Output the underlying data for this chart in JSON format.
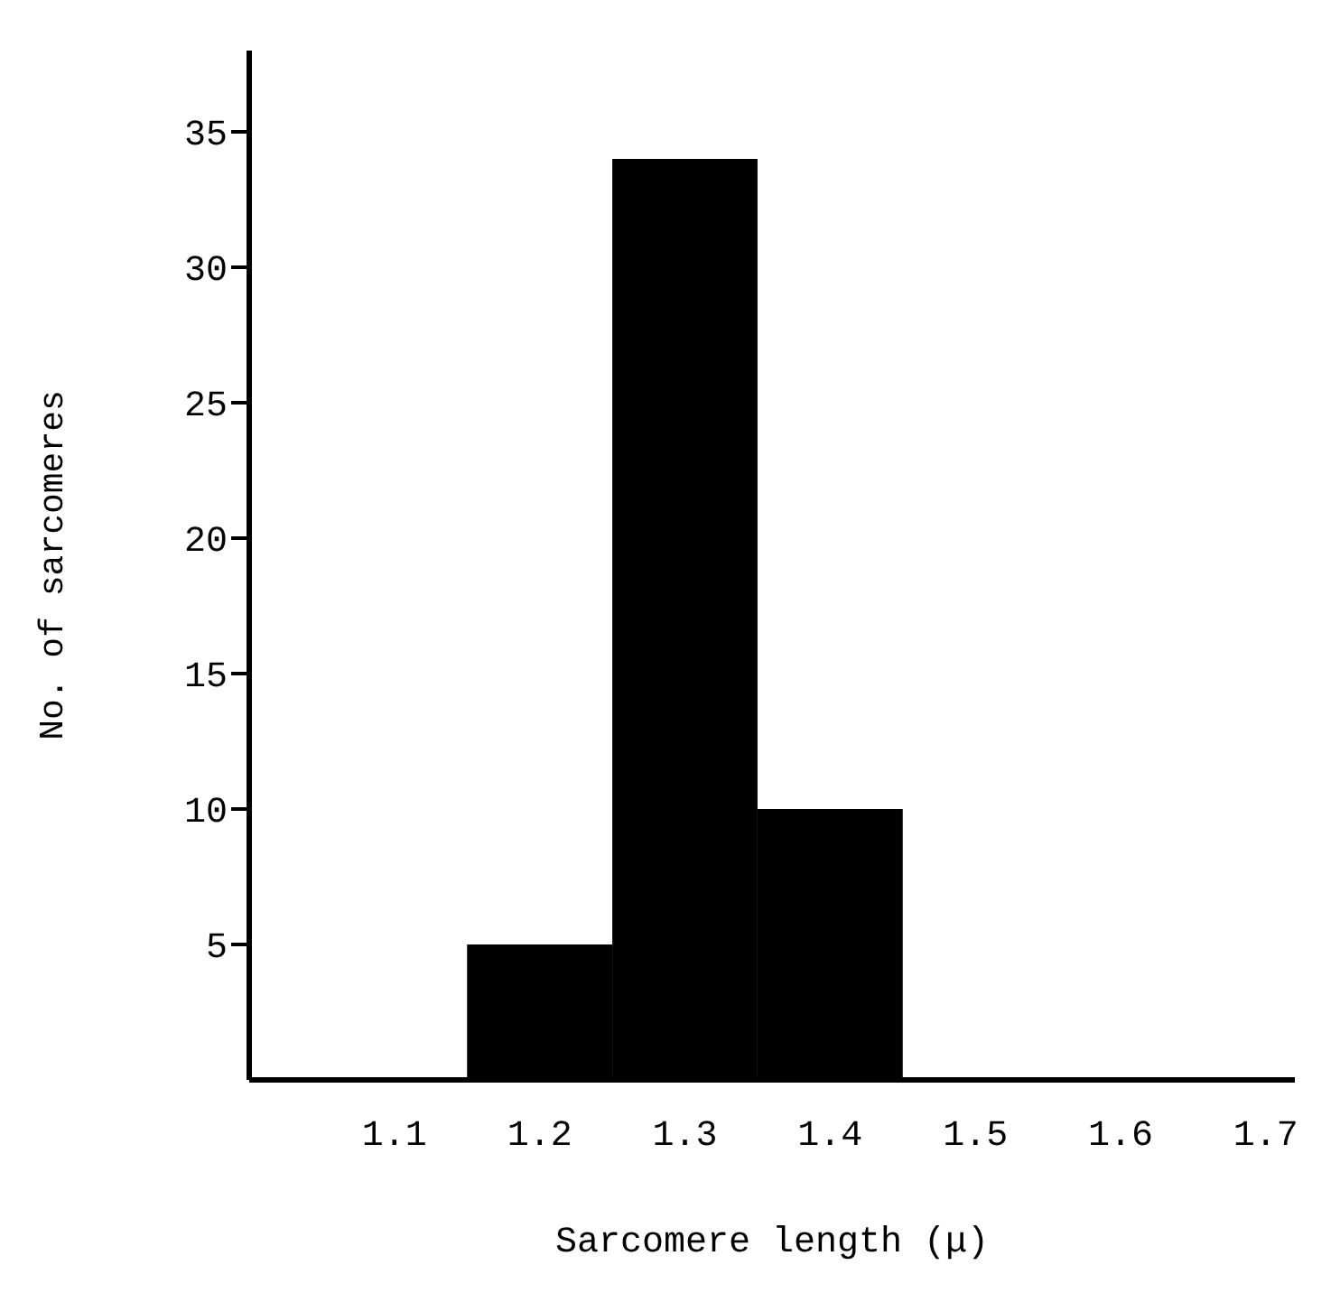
{
  "chart_data": {
    "type": "histogram",
    "xlabel": "Sarcomere length (μ)",
    "ylabel": "No. of sarcomeres",
    "bins": [
      1.15,
      1.25,
      1.35,
      1.45
    ],
    "values": [
      5,
      34,
      10
    ],
    "color": "#000000",
    "xlim": [
      1.0,
      1.72
    ],
    "xticks": [
      1.1,
      1.2,
      1.3,
      1.4,
      1.5,
      1.6,
      1.7
    ],
    "ylim": [
      0,
      38
    ],
    "yticks": [
      5,
      10,
      15,
      20,
      25,
      30,
      35
    ],
    "grid": false,
    "legend": false
  }
}
